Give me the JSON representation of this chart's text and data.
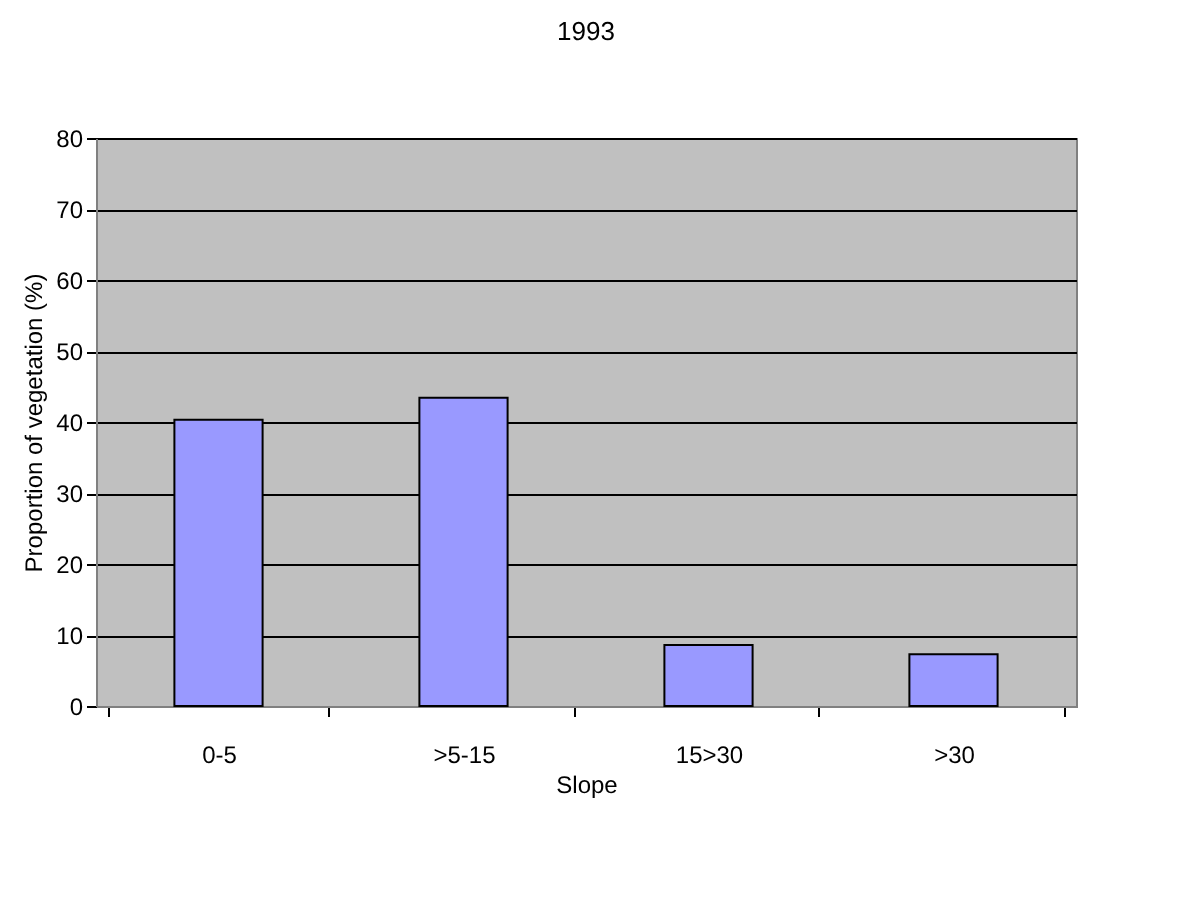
{
  "chart_data": {
    "type": "bar",
    "title": "1993",
    "xlabel": "Slope",
    "ylabel": "Proportion of vegetation (%)",
    "categories": [
      "0-5",
      ">5-15",
      "15>30",
      ">30"
    ],
    "values": [
      40.3,
      43.4,
      8.6,
      7.3
    ],
    "color": "#9999ff",
    "ylim": [
      0,
      80
    ],
    "yticks": [
      0,
      10,
      20,
      30,
      40,
      50,
      60,
      70,
      80
    ],
    "grid": "y"
  }
}
